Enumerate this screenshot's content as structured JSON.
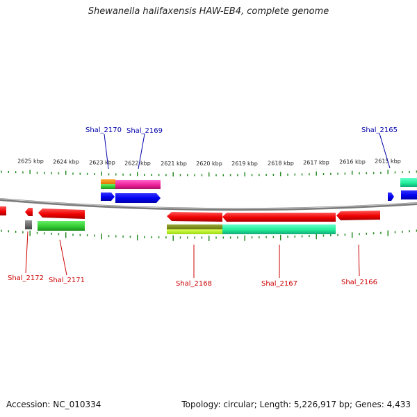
{
  "title": "Shewanella halifaxensis HAW-EB4, complete genome",
  "footer": {
    "accession": "Accession: NC_010334",
    "summary": "Topology: circular; Length: 5,226,917 bp; Genes: 4,433"
  },
  "scale_labels": [
    "2625 kbp",
    "2624 kbp",
    "2623 kbp",
    "2622 kbp",
    "2621 kbp",
    "2620 kbp",
    "2619 kbp",
    "2618 kbp",
    "2617 kbp",
    "2616 kbp",
    "2615 kbp"
  ],
  "gene_labels": {
    "top": [
      "Shal_2170",
      "Shal_2169",
      "Shal_2165"
    ],
    "bottom": [
      "Shal_2172",
      "Shal_2171",
      "Shal_2168",
      "Shal_2167",
      "Shal_2166"
    ]
  },
  "colors": {
    "forward_label": "#0000aa",
    "reverse_label": "#cc0000",
    "forward_gene": "#0000ee",
    "reverse_gene": "#ee0000",
    "tick": "#228b22",
    "backbone": "#808080"
  }
}
